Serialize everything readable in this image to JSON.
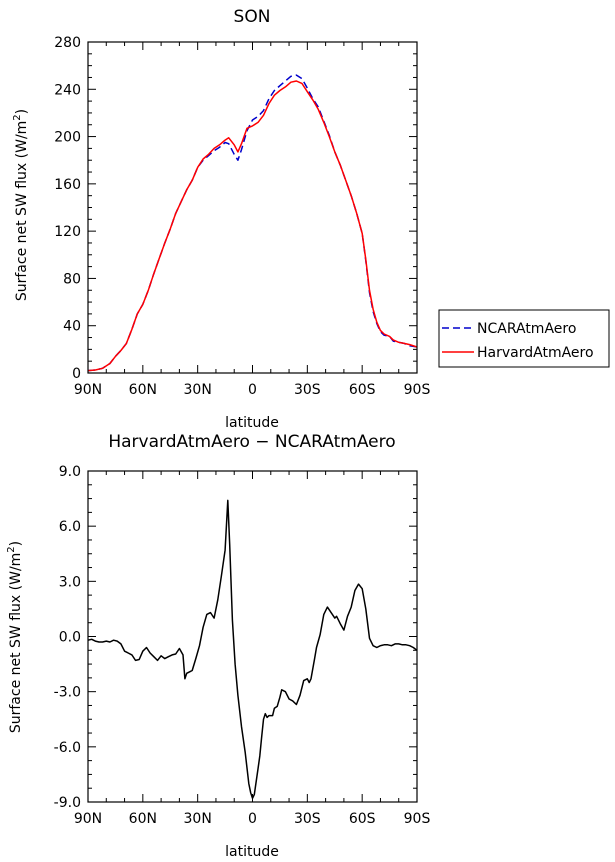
{
  "chart_data": [
    {
      "type": "line",
      "title": "SON",
      "xlabel": "latitude",
      "ylabel": "Surface net SW flux (W/m²)",
      "ylabel_main": "Surface net SW flux (W/m",
      "ylabel_sup": "2",
      "ylabel_end": ")",
      "xlim": [
        90,
        -90
      ],
      "ylim": [
        0,
        280
      ],
      "xticks": [
        90,
        60,
        30,
        0,
        -30,
        -60,
        -90
      ],
      "xtick_labels": [
        "90N",
        "60N",
        "30N",
        "0",
        "30S",
        "60S",
        "90S"
      ],
      "yticks": [
        0,
        40,
        80,
        120,
        160,
        200,
        240,
        280
      ],
      "ytick_labels": [
        "0",
        "40",
        "80",
        "120",
        "160",
        "200",
        "240",
        "280"
      ],
      "legend_position": "right",
      "series": [
        {
          "name": "NCARAtmAero",
          "color": "#0000cc",
          "style": "dashed",
          "points": [
            [
              90,
              2
            ],
            [
              86,
              2.5
            ],
            [
              82,
              4
            ],
            [
              78,
              8
            ],
            [
              75,
              14
            ],
            [
              72,
              19
            ],
            [
              69,
              25
            ],
            [
              66,
              37
            ],
            [
              63,
              50
            ],
            [
              60,
              58
            ],
            [
              57,
              70
            ],
            [
              54,
              84
            ],
            [
              51,
              97
            ],
            [
              48,
              110
            ],
            [
              45,
              122
            ],
            [
              42,
              135
            ],
            [
              39,
              145
            ],
            [
              36,
              155
            ],
            [
              33,
              163
            ],
            [
              30,
              174
            ],
            [
              27,
              180
            ],
            [
              24,
              184
            ],
            [
              21,
              188
            ],
            [
              18,
              191
            ],
            [
              15,
              195
            ],
            [
              13,
              194
            ],
            [
              10,
              185
            ],
            [
              8,
              180
            ],
            [
              6,
              189
            ],
            [
              3,
              205
            ],
            [
              0,
              214
            ],
            [
              -3,
              217
            ],
            [
              -6,
              222
            ],
            [
              -9,
              232
            ],
            [
              -12,
              239
            ],
            [
              -15,
              243
            ],
            [
              -18,
              247
            ],
            [
              -21,
              251
            ],
            [
              -24,
              252
            ],
            [
              -27,
              249
            ],
            [
              -30,
              241
            ],
            [
              -33,
              232
            ],
            [
              -36,
              225
            ],
            [
              -39,
              213
            ],
            [
              -42,
              201
            ],
            [
              -45,
              187
            ],
            [
              -48,
              176
            ],
            [
              -51,
              163
            ],
            [
              -54,
              150
            ],
            [
              -57,
              135
            ],
            [
              -60,
              118
            ],
            [
              -62,
              95
            ],
            [
              -64,
              68
            ],
            [
              -66,
              52
            ],
            [
              -68,
              42
            ],
            [
              -70,
              35
            ],
            [
              -72,
              32
            ],
            [
              -75,
              31
            ],
            [
              -77,
              27
            ],
            [
              -80,
              26
            ],
            [
              -83,
              25
            ],
            [
              -86,
              23
            ],
            [
              -90,
              22
            ]
          ]
        },
        {
          "name": "HarvardAtmAero",
          "color": "#ff0000",
          "style": "solid",
          "points": [
            [
              90,
              2
            ],
            [
              86,
              2.5
            ],
            [
              82,
              4
            ],
            [
              78,
              8
            ],
            [
              75,
              14
            ],
            [
              72,
              19
            ],
            [
              69,
              25
            ],
            [
              66,
              37
            ],
            [
              63,
              50
            ],
            [
              60,
              58
            ],
            [
              57,
              70
            ],
            [
              54,
              84
            ],
            [
              51,
              97
            ],
            [
              48,
              110
            ],
            [
              45,
              122
            ],
            [
              42,
              135
            ],
            [
              39,
              145
            ],
            [
              36,
              155
            ],
            [
              33,
              163
            ],
            [
              30,
              174
            ],
            [
              27,
              181
            ],
            [
              24,
              185
            ],
            [
              21,
              190
            ],
            [
              18,
              193
            ],
            [
              15,
              197
            ],
            [
              13,
              199
            ],
            [
              10,
              193
            ],
            [
              8,
              187
            ],
            [
              6,
              194
            ],
            [
              3,
              207
            ],
            [
              0,
              209
            ],
            [
              -3,
              212
            ],
            [
              -6,
              218
            ],
            [
              -9,
              228
            ],
            [
              -12,
              235
            ],
            [
              -15,
              239
            ],
            [
              -18,
              242
            ],
            [
              -21,
              246
            ],
            [
              -24,
              247
            ],
            [
              -27,
              245
            ],
            [
              -30,
              238
            ],
            [
              -33,
              231
            ],
            [
              -36,
              223
            ],
            [
              -39,
              212
            ],
            [
              -42,
              200
            ],
            [
              -45,
              187
            ],
            [
              -48,
              176
            ],
            [
              -51,
              163
            ],
            [
              -54,
              150
            ],
            [
              -57,
              135
            ],
            [
              -60,
              118
            ],
            [
              -62,
              96
            ],
            [
              -64,
              70
            ],
            [
              -66,
              54
            ],
            [
              -68,
              43
            ],
            [
              -70,
              36
            ],
            [
              -72,
              33
            ],
            [
              -75,
              31
            ],
            [
              -77,
              28
            ],
            [
              -80,
              26
            ],
            [
              -83,
              25
            ],
            [
              -86,
              24
            ],
            [
              -90,
              22
            ]
          ]
        }
      ]
    },
    {
      "type": "line",
      "title": "HarvardAtmAero − NCARAtmAero",
      "xlabel": "latitude",
      "ylabel": "Surface net SW flux (W/m²)",
      "ylabel_main": "Surface net SW flux (W/m",
      "ylabel_sup": "2",
      "ylabel_end": ")",
      "xlim": [
        90,
        -90
      ],
      "ylim": [
        -9,
        9
      ],
      "xticks": [
        90,
        60,
        30,
        0,
        -30,
        -60,
        -90
      ],
      "xtick_labels": [
        "90N",
        "60N",
        "30N",
        "0",
        "30S",
        "60S",
        "90S"
      ],
      "yticks": [
        9,
        6,
        3,
        0,
        -3,
        -6,
        -9
      ],
      "ytick_labels": [
        "9.0",
        "6.0",
        "3.0",
        "0.0",
        "-3.0",
        "-6.0",
        "-9.0"
      ],
      "series": [
        {
          "color": "#000000",
          "style": "solid",
          "points": [
            [
              90,
              -0.2
            ],
            [
              88,
              -0.15
            ],
            [
              86,
              -0.25
            ],
            [
              84,
              -0.3
            ],
            [
              82,
              -0.3
            ],
            [
              80,
              -0.25
            ],
            [
              78,
              -0.3
            ],
            [
              76,
              -0.2
            ],
            [
              74,
              -0.25
            ],
            [
              72,
              -0.4
            ],
            [
              70,
              -0.8
            ],
            [
              68,
              -0.9
            ],
            [
              66,
              -1.0
            ],
            [
              64,
              -1.3
            ],
            [
              62,
              -1.25
            ],
            [
              60,
              -0.8
            ],
            [
              58,
              -0.6
            ],
            [
              56,
              -0.9
            ],
            [
              54,
              -1.1
            ],
            [
              52,
              -1.3
            ],
            [
              50,
              -1.05
            ],
            [
              48,
              -1.2
            ],
            [
              46,
              -1.1
            ],
            [
              44,
              -1.0
            ],
            [
              42,
              -0.95
            ],
            [
              40,
              -0.65
            ],
            [
              38,
              -1.0
            ],
            [
              37,
              -2.3
            ],
            [
              36,
              -2.0
            ],
            [
              34,
              -1.9
            ],
            [
              33,
              -1.85
            ],
            [
              31,
              -1.2
            ],
            [
              29,
              -0.5
            ],
            [
              27,
              0.5
            ],
            [
              25,
              1.2
            ],
            [
              23,
              1.3
            ],
            [
              21,
              1.0
            ],
            [
              19,
              2.0
            ],
            [
              17,
              3.3
            ],
            [
              15,
              4.7
            ],
            [
              13.5,
              7.4
            ],
            [
              12.5,
              5.0
            ],
            [
              11,
              0.9
            ],
            [
              9.5,
              -1.5
            ],
            [
              8,
              -3.2
            ],
            [
              6,
              -4.9
            ],
            [
              4,
              -6.3
            ],
            [
              2,
              -8.0
            ],
            [
              1,
              -8.5
            ],
            [
              0,
              -8.8
            ],
            [
              -1,
              -8.6
            ],
            [
              -3,
              -7.2
            ],
            [
              -4,
              -6.5
            ],
            [
              -5,
              -5.5
            ],
            [
              -6,
              -4.5
            ],
            [
              -7,
              -4.2
            ],
            [
              -8,
              -4.4
            ],
            [
              -9,
              -4.3
            ],
            [
              -11,
              -4.3
            ],
            [
              -12,
              -3.9
            ],
            [
              -13.5,
              -3.8
            ],
            [
              -15,
              -3.3
            ],
            [
              -16,
              -2.9
            ],
            [
              -18,
              -3.0
            ],
            [
              -20,
              -3.4
            ],
            [
              -22,
              -3.5
            ],
            [
              -24,
              -3.7
            ],
            [
              -26,
              -3.2
            ],
            [
              -28,
              -2.4
            ],
            [
              -30,
              -2.3
            ],
            [
              -31,
              -2.5
            ],
            [
              -32,
              -2.3
            ],
            [
              -34,
              -1.2
            ],
            [
              -35,
              -0.6
            ],
            [
              -37,
              0.1
            ],
            [
              -39,
              1.2
            ],
            [
              -41,
              1.6
            ],
            [
              -43,
              1.3
            ],
            [
              -45,
              1.0
            ],
            [
              -46,
              1.1
            ],
            [
              -48,
              0.7
            ],
            [
              -50,
              0.35
            ],
            [
              -52,
              1.1
            ],
            [
              -54,
              1.6
            ],
            [
              -56,
              2.5
            ],
            [
              -58,
              2.85
            ],
            [
              -60,
              2.6
            ],
            [
              -62,
              1.5
            ],
            [
              -64,
              -0.1
            ],
            [
              -66,
              -0.5
            ],
            [
              -68,
              -0.6
            ],
            [
              -70,
              -0.5
            ],
            [
              -72,
              -0.45
            ],
            [
              -74,
              -0.45
            ],
            [
              -76,
              -0.5
            ],
            [
              -78,
              -0.4
            ],
            [
              -80,
              -0.4
            ],
            [
              -82,
              -0.45
            ],
            [
              -84,
              -0.45
            ],
            [
              -86,
              -0.5
            ],
            [
              -88,
              -0.6
            ],
            [
              -90,
              -0.75
            ]
          ]
        }
      ]
    }
  ]
}
